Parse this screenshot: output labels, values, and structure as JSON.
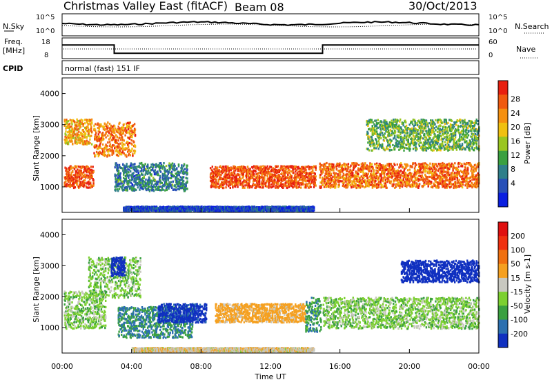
{
  "header": {
    "station": "Christmas Valley East (fitACF)",
    "beam": "Beam 08",
    "date": "30/Oct/2013"
  },
  "noise_panel": {
    "left_label": "N.Sky",
    "right_label": "N.Search",
    "left_ticks": [
      "10^5",
      "10^0"
    ],
    "right_ticks": [
      "10^5",
      "10^0"
    ]
  },
  "freq_panel": {
    "left_label_line1": "Freq.",
    "left_label_line2": "[MHz]",
    "right_label": "Nave",
    "left_ticks": [
      "18",
      "8"
    ],
    "right_ticks": [
      "60",
      "0"
    ],
    "freq_steps": [
      {
        "t_start": 0,
        "t_end": 3,
        "freq": 15
      },
      {
        "t_start": 3,
        "t_end": 15,
        "freq": 10
      },
      {
        "t_start": 15,
        "t_end": 24,
        "freq": 15
      }
    ]
  },
  "cpid": {
    "label": "CPID",
    "mode": "normal (fast) 151 IF"
  },
  "chart_data": [
    {
      "type": "heatmap",
      "name": "power",
      "ylabel": "Slant Range [km]",
      "xlabel": "",
      "xlim": [
        0,
        24
      ],
      "ylim": [
        180,
        4500
      ],
      "yticks": [
        1000,
        2000,
        3000,
        4000
      ],
      "colorbar": {
        "label": "Power [dB]",
        "ticks": [
          "4",
          "8",
          "12",
          "16",
          "20",
          "24",
          "28"
        ],
        "colors": [
          "#0a1fe0",
          "#2850b8",
          "#2f7f8a",
          "#3aa040",
          "#9ac620",
          "#f0c010",
          "#f59010",
          "#f05a10",
          "#e82010"
        ]
      },
      "regions": [
        {
          "t0": 0.1,
          "t1": 1.8,
          "r0": 1000,
          "r1": 1700,
          "v": 27
        },
        {
          "t0": 0.1,
          "t1": 1.7,
          "r0": 2400,
          "r1": 3200,
          "v": 22
        },
        {
          "t0": 1.8,
          "t1": 4.2,
          "r0": 2000,
          "r1": 3100,
          "v": 24
        },
        {
          "t0": 3.0,
          "t1": 7.2,
          "r0": 900,
          "r1": 1800,
          "v": 10
        },
        {
          "t0": 8.5,
          "t1": 14.6,
          "r0": 1000,
          "r1": 1700,
          "v": 27
        },
        {
          "t0": 14.8,
          "t1": 24.0,
          "r0": 1000,
          "r1": 1800,
          "v": 25
        },
        {
          "t0": 17.5,
          "t1": 24.0,
          "r0": 2200,
          "r1": 3200,
          "v": 14
        },
        {
          "t0": 3.5,
          "t1": 14.5,
          "r0": 250,
          "r1": 400,
          "v": 6
        }
      ]
    },
    {
      "type": "heatmap",
      "name": "velocity",
      "ylabel": "Slant Range [km]",
      "xlabel": "Time UT",
      "xlim": [
        0,
        24
      ],
      "ylim": [
        180,
        4500
      ],
      "yticks": [
        1000,
        2000,
        3000,
        4000
      ],
      "xticks": [
        "00:00",
        "04:00",
        "08:00",
        "12:00",
        "16:00",
        "20:00",
        "00:00"
      ],
      "colorbar": {
        "label": "Velocity [m s-1]",
        "ticks": [
          "200",
          "100",
          "50",
          "15",
          "-15",
          "-50",
          "-100",
          "-200"
        ],
        "colors": [
          "#1030c0",
          "#2c70b0",
          "#3aa040",
          "#7cd030",
          "#c8c8c0",
          "#f5a020",
          "#f07010",
          "#f03010",
          "#e01010"
        ]
      },
      "regions": [
        {
          "t0": 0.1,
          "t1": 2.5,
          "r0": 1000,
          "r1": 2200,
          "v": 0
        },
        {
          "t0": 1.5,
          "t1": 4.5,
          "r0": 2000,
          "r1": 3300,
          "v": 0
        },
        {
          "t0": 2.8,
          "t1": 3.6,
          "r0": 2700,
          "r1": 3300,
          "v": 200
        },
        {
          "t0": 3.2,
          "t1": 7.5,
          "r0": 700,
          "r1": 1700,
          "v": 50
        },
        {
          "t0": 5.5,
          "t1": 8.3,
          "r0": 1200,
          "r1": 1800,
          "v": 120
        },
        {
          "t0": 8.8,
          "t1": 14.0,
          "r0": 1200,
          "r1": 1800,
          "v": -70
        },
        {
          "t0": 14.0,
          "t1": 14.9,
          "r0": 900,
          "r1": 2000,
          "v": 40
        },
        {
          "t0": 15.0,
          "t1": 24.0,
          "r0": 1000,
          "r1": 2000,
          "v": 0
        },
        {
          "t0": 19.5,
          "t1": 24.0,
          "r0": 2500,
          "r1": 3200,
          "v": 200
        },
        {
          "t0": 4.0,
          "t1": 14.5,
          "r0": 250,
          "r1": 380,
          "v": -40
        }
      ]
    }
  ]
}
